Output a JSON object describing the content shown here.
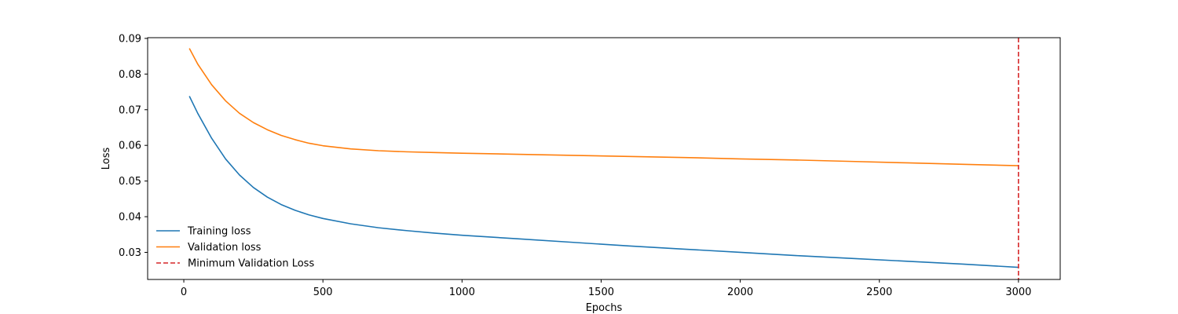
{
  "chart_data": {
    "type": "line",
    "title": "",
    "xlabel": "Epochs",
    "ylabel": "Loss",
    "xlim": [
      -130,
      3150
    ],
    "ylim": [
      0.0224,
      0.0902
    ],
    "xticks": [
      0,
      500,
      1000,
      1500,
      2000,
      2500,
      3000
    ],
    "yticks": [
      0.03,
      0.04,
      0.05,
      0.06,
      0.07,
      0.08,
      0.09
    ],
    "xtick_labels": [
      "0",
      "500",
      "1000",
      "1500",
      "2000",
      "2500",
      "3000"
    ],
    "ytick_labels": [
      "0.03",
      "0.04",
      "0.05",
      "0.06",
      "0.07",
      "0.08",
      "0.09"
    ],
    "grid": false,
    "legend": "lower-left",
    "series": [
      {
        "name": "Training loss",
        "color": "#1f77b4",
        "x": [
          20,
          50,
          100,
          150,
          200,
          250,
          300,
          350,
          400,
          450,
          500,
          600,
          700,
          800,
          900,
          1000,
          1200,
          1400,
          1600,
          1800,
          2000,
          2200,
          2400,
          2600,
          2800,
          3000
        ],
        "y": [
          0.0738,
          0.069,
          0.062,
          0.0562,
          0.0517,
          0.0482,
          0.0455,
          0.0434,
          0.0418,
          0.0405,
          0.0395,
          0.038,
          0.0369,
          0.0361,
          0.0354,
          0.0348,
          0.0338,
          0.0328,
          0.0318,
          0.0309,
          0.03,
          0.0291,
          0.0283,
          0.0275,
          0.0267,
          0.0258
        ]
      },
      {
        "name": "Validation loss",
        "color": "#ff7f0e",
        "x": [
          20,
          50,
          100,
          150,
          200,
          250,
          300,
          350,
          400,
          450,
          500,
          600,
          700,
          800,
          900,
          1000,
          1200,
          1400,
          1600,
          1800,
          2000,
          2200,
          2400,
          2600,
          2800,
          3000
        ],
        "y": [
          0.0872,
          0.0828,
          0.077,
          0.0725,
          0.069,
          0.0664,
          0.0644,
          0.0628,
          0.0616,
          0.0606,
          0.0599,
          0.059,
          0.0585,
          0.0582,
          0.058,
          0.0578,
          0.0575,
          0.0572,
          0.0569,
          0.0566,
          0.0562,
          0.0559,
          0.0555,
          0.0551,
          0.0547,
          0.0543
        ]
      }
    ],
    "vline": {
      "name": "Minimum Validation Loss",
      "x": 3000,
      "color": "#d62728",
      "style": "dashed"
    }
  }
}
